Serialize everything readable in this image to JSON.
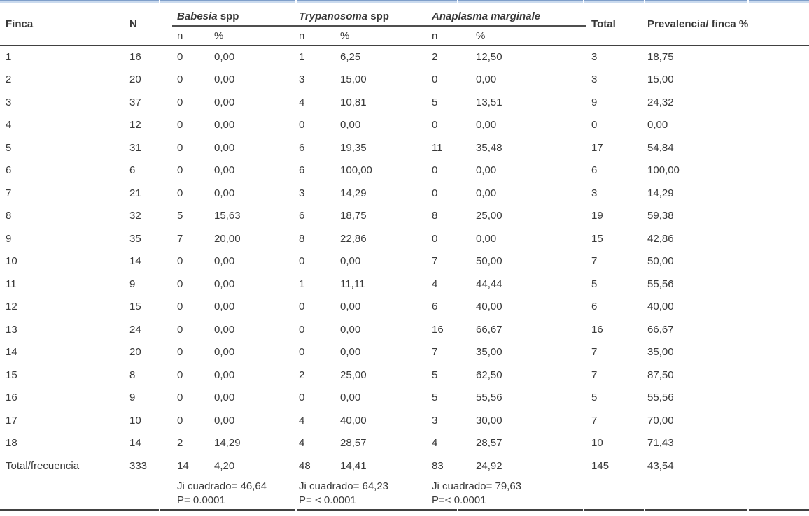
{
  "table": {
    "headers": {
      "finca": "Finca",
      "n_total": "N",
      "babesia_italic": "Babesia",
      "babesia_suffix": " spp",
      "trypanosoma_italic": "Trypanosoma",
      "trypanosoma_suffix": " spp",
      "anaplasma_italic": "Anaplasma marginale",
      "total": "Total",
      "prevalencia": "Prevalencia/ finca %",
      "sub_n": "n",
      "sub_pct": "%"
    },
    "rows": [
      {
        "finca": "1",
        "n": "16",
        "b_n": "0",
        "b_pct": "0,00",
        "t_n": "1",
        "t_pct": "6,25",
        "a_n": "2",
        "a_pct": "12,50",
        "total": "3",
        "prev": "18,75"
      },
      {
        "finca": "2",
        "n": "20",
        "b_n": "0",
        "b_pct": "0,00",
        "t_n": "3",
        "t_pct": "15,00",
        "a_n": "0",
        "a_pct": "0,00",
        "total": "3",
        "prev": "15,00"
      },
      {
        "finca": "3",
        "n": "37",
        "b_n": "0",
        "b_pct": "0,00",
        "t_n": "4",
        "t_pct": "10,81",
        "a_n": "5",
        "a_pct": "13,51",
        "total": "9",
        "prev": "24,32"
      },
      {
        "finca": "4",
        "n": "12",
        "b_n": "0",
        "b_pct": "0,00",
        "t_n": "0",
        "t_pct": "0,00",
        "a_n": "0",
        "a_pct": "0,00",
        "total": "0",
        "prev": "0,00"
      },
      {
        "finca": "5",
        "n": "31",
        "b_n": "0",
        "b_pct": "0,00",
        "t_n": "6",
        "t_pct": "19,35",
        "a_n": "11",
        "a_pct": "35,48",
        "total": "17",
        "prev": "54,84"
      },
      {
        "finca": "6",
        "n": "6",
        "b_n": "0",
        "b_pct": "0,00",
        "t_n": "6",
        "t_pct": "100,00",
        "a_n": "0",
        "a_pct": "0,00",
        "total": "6",
        "prev": "100,00"
      },
      {
        "finca": "7",
        "n": "21",
        "b_n": "0",
        "b_pct": "0,00",
        "t_n": "3",
        "t_pct": "14,29",
        "a_n": "0",
        "a_pct": "0,00",
        "total": "3",
        "prev": "14,29"
      },
      {
        "finca": "8",
        "n": "32",
        "b_n": "5",
        "b_pct": "15,63",
        "t_n": "6",
        "t_pct": "18,75",
        "a_n": "8",
        "a_pct": "25,00",
        "total": "19",
        "prev": "59,38"
      },
      {
        "finca": "9",
        "n": "35",
        "b_n": "7",
        "b_pct": "20,00",
        "t_n": "8",
        "t_pct": "22,86",
        "a_n": "0",
        "a_pct": "0,00",
        "total": "15",
        "prev": "42,86"
      },
      {
        "finca": "10",
        "n": "14",
        "b_n": "0",
        "b_pct": "0,00",
        "t_n": "0",
        "t_pct": "0,00",
        "a_n": "7",
        "a_pct": "50,00",
        "total": "7",
        "prev": "50,00"
      },
      {
        "finca": "11",
        "n": "9",
        "b_n": "0",
        "b_pct": "0,00",
        "t_n": "1",
        "t_pct": "11,11",
        "a_n": "4",
        "a_pct": "44,44",
        "total": "5",
        "prev": "55,56"
      },
      {
        "finca": "12",
        "n": "15",
        "b_n": "0",
        "b_pct": "0,00",
        "t_n": "0",
        "t_pct": "0,00",
        "a_n": "6",
        "a_pct": "40,00",
        "total": "6",
        "prev": "40,00"
      },
      {
        "finca": "13",
        "n": "24",
        "b_n": "0",
        "b_pct": "0,00",
        "t_n": "0",
        "t_pct": "0,00",
        "a_n": "16",
        "a_pct": "66,67",
        "total": "16",
        "prev": "66,67"
      },
      {
        "finca": "14",
        "n": "20",
        "b_n": "0",
        "b_pct": "0,00",
        "t_n": "0",
        "t_pct": "0,00",
        "a_n": "7",
        "a_pct": "35,00",
        "total": "7",
        "prev": "35,00"
      },
      {
        "finca": "15",
        "n": "8",
        "b_n": "0",
        "b_pct": "0,00",
        "t_n": "2",
        "t_pct": "25,00",
        "a_n": "5",
        "a_pct": "62,50",
        "total": "7",
        "prev": "87,50"
      },
      {
        "finca": "16",
        "n": "9",
        "b_n": "0",
        "b_pct": "0,00",
        "t_n": "0",
        "t_pct": "0,00",
        "a_n": "5",
        "a_pct": "55,56",
        "total": "5",
        "prev": "55,56"
      },
      {
        "finca": "17",
        "n": "10",
        "b_n": "0",
        "b_pct": "0,00",
        "t_n": "4",
        "t_pct": "40,00",
        "a_n": "3",
        "a_pct": "30,00",
        "total": "7",
        "prev": "70,00"
      },
      {
        "finca": "18",
        "n": "14",
        "b_n": "2",
        "b_pct": "14,29",
        "t_n": "4",
        "t_pct": "28,57",
        "a_n": "4",
        "a_pct": "28,57",
        "total": "10",
        "prev": "71,43"
      }
    ],
    "total_row": {
      "finca": "Total/frecuencia",
      "n": "333",
      "b_n": "14",
      "b_pct": "4,20",
      "t_n": "48",
      "t_pct": "14,41",
      "a_n": "83",
      "a_pct": "24,92",
      "total": "145",
      "prev": "43,54"
    },
    "footer": {
      "babesia_chi": "Ji cuadrado= 46,64",
      "babesia_p": "P= 0.0001",
      "trypanosoma_chi": "Ji cuadrado= 64,23",
      "trypanosoma_p": "P= < 0.0001",
      "anaplasma_chi": "Ji cuadrado= 79,63",
      "anaplasma_p": "P=< 0.0001"
    }
  }
}
